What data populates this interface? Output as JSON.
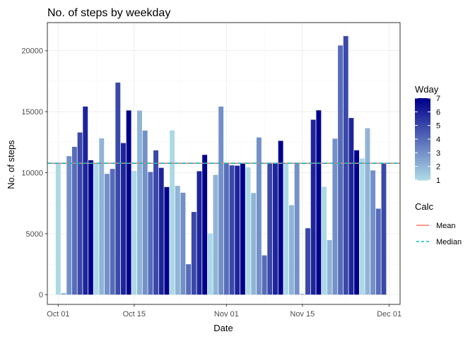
{
  "chart_data": {
    "type": "bar",
    "title": "No. of steps by weekday",
    "xlabel": "Date",
    "ylabel": "No. of steps",
    "x_start": "2012-10-01",
    "x_ticks": [
      {
        "label": "Oct 01",
        "date": "2012-10-01"
      },
      {
        "label": "Oct 15",
        "date": "2012-10-15"
      },
      {
        "label": "Nov 01",
        "date": "2012-11-01"
      },
      {
        "label": "Nov 15",
        "date": "2012-11-15"
      },
      {
        "label": "Dec 01",
        "date": "2012-12-01"
      }
    ],
    "xlim": [
      "2012-09-29",
      "2012-12-03"
    ],
    "ylim": [
      -800,
      22300
    ],
    "y_ticks": [
      0,
      5000,
      10000,
      15000,
      20000
    ],
    "grid": true,
    "values": [
      10766,
      126,
      11352,
      12116,
      13294,
      15420,
      11015,
      10766,
      12811,
      9900,
      10304,
      17382,
      12426,
      15098,
      10139,
      15084,
      13452,
      10056,
      11829,
      10395,
      8821,
      13460,
      8918,
      8355,
      2492,
      6778,
      10119,
      11458,
      5018,
      9819,
      15414,
      10766,
      10600,
      10571,
      10766,
      10439,
      8334,
      12883,
      3219,
      10766,
      10766,
      12608,
      10765,
      7336,
      10766,
      41,
      5441,
      14339,
      15110,
      8841,
      4472,
      12787,
      20427,
      21194,
      14478,
      11834,
      11162,
      13646,
      10183,
      7047,
      10766
    ],
    "fill_legend": {
      "title": "Wday",
      "min": 1,
      "max": 7,
      "ticks": [
        1,
        2,
        3,
        4,
        5,
        6,
        7
      ],
      "low_color": "#add8e6",
      "high_color": "#00008b"
    },
    "reference_lines": [
      {
        "name": "Mean",
        "value": 10766.19,
        "color": "#f8766d",
        "style": "solid"
      },
      {
        "name": "Median",
        "value": 10766.19,
        "color": "#00bfc4",
        "style": "dashed"
      }
    ],
    "line_legend": {
      "title": "Calc",
      "entries": [
        "Mean",
        "Median"
      ]
    }
  }
}
